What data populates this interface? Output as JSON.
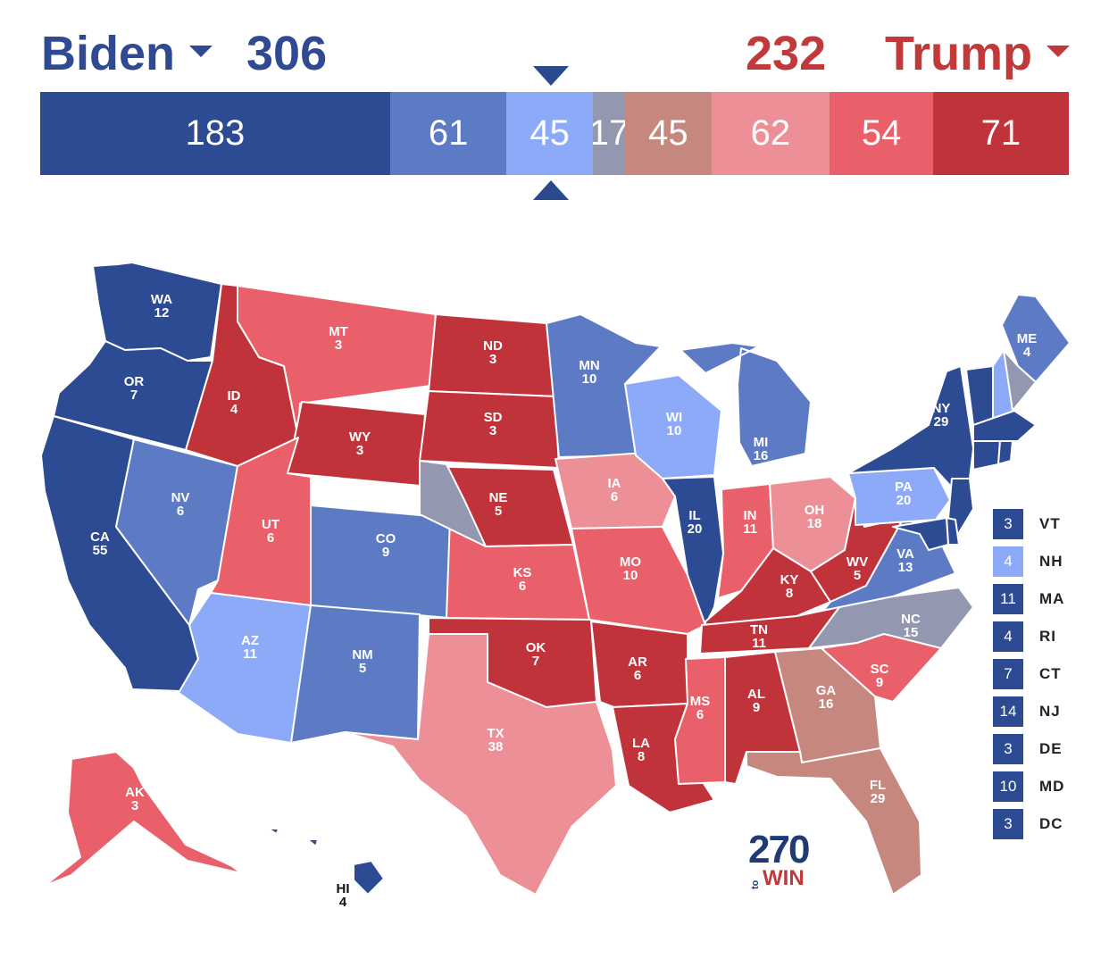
{
  "header": {
    "biden": {
      "name": "Biden",
      "ev": "306",
      "color": "#2f4a92"
    },
    "trump": {
      "name": "Trump",
      "ev": "232",
      "color": "#c1393b"
    }
  },
  "bar": {
    "segments": [
      {
        "label": "183",
        "value": 183,
        "color": "#2c4b93"
      },
      {
        "label": "61",
        "value": 61,
        "color": "#5d7bc5"
      },
      {
        "label": "45",
        "value": 45,
        "color": "#8daaf8"
      },
      {
        "label": "17",
        "value": 17,
        "color": "#9497b0"
      },
      {
        "label": "45",
        "value": 45,
        "color": "#c5877e"
      },
      {
        "label": "62",
        "value": 62,
        "color": "#ed8f96"
      },
      {
        "label": "54",
        "value": 54,
        "color": "#e9606a"
      },
      {
        "label": "71",
        "value": 71,
        "color": "#c1333b"
      }
    ]
  },
  "colors": {
    "safe_d": "#2c4b93",
    "likely_d": "#5d7bc5",
    "lean_d": "#8daaf8",
    "tossup": "#9497b0",
    "tilt_r": "#c5877e",
    "lean_r": "#ed8f96",
    "likely_r": "#e9606a",
    "safe_r": "#c1333b"
  },
  "states": [
    {
      "abbr": "WA",
      "ev": "12",
      "rating": "safe_d"
    },
    {
      "abbr": "OR",
      "ev": "7",
      "rating": "safe_d"
    },
    {
      "abbr": "CA",
      "ev": "55",
      "rating": "safe_d"
    },
    {
      "abbr": "NV",
      "ev": "6",
      "rating": "likely_d"
    },
    {
      "abbr": "ID",
      "ev": "4",
      "rating": "safe_r"
    },
    {
      "abbr": "MT",
      "ev": "3",
      "rating": "likely_r"
    },
    {
      "abbr": "WY",
      "ev": "3",
      "rating": "safe_r"
    },
    {
      "abbr": "UT",
      "ev": "6",
      "rating": "likely_r"
    },
    {
      "abbr": "AZ",
      "ev": "11",
      "rating": "lean_d"
    },
    {
      "abbr": "CO",
      "ev": "9",
      "rating": "likely_d"
    },
    {
      "abbr": "NM",
      "ev": "5",
      "rating": "likely_d"
    },
    {
      "abbr": "ND",
      "ev": "3",
      "rating": "safe_r"
    },
    {
      "abbr": "SD",
      "ev": "3",
      "rating": "safe_r"
    },
    {
      "abbr": "NE",
      "ev": "5",
      "rating": "safe_r"
    },
    {
      "abbr": "KS",
      "ev": "6",
      "rating": "likely_r"
    },
    {
      "abbr": "OK",
      "ev": "7",
      "rating": "safe_r"
    },
    {
      "abbr": "TX",
      "ev": "38",
      "rating": "lean_r"
    },
    {
      "abbr": "MN",
      "ev": "10",
      "rating": "likely_d"
    },
    {
      "abbr": "IA",
      "ev": "6",
      "rating": "lean_r"
    },
    {
      "abbr": "MO",
      "ev": "10",
      "rating": "likely_r"
    },
    {
      "abbr": "AR",
      "ev": "6",
      "rating": "safe_r"
    },
    {
      "abbr": "LA",
      "ev": "8",
      "rating": "safe_r"
    },
    {
      "abbr": "WI",
      "ev": "10",
      "rating": "lean_d"
    },
    {
      "abbr": "IL",
      "ev": "20",
      "rating": "safe_d"
    },
    {
      "abbr": "MI",
      "ev": "16",
      "rating": "likely_d"
    },
    {
      "abbr": "IN",
      "ev": "11",
      "rating": "likely_r"
    },
    {
      "abbr": "OH",
      "ev": "18",
      "rating": "lean_r"
    },
    {
      "abbr": "KY",
      "ev": "8",
      "rating": "safe_r"
    },
    {
      "abbr": "TN",
      "ev": "11",
      "rating": "safe_r"
    },
    {
      "abbr": "MS",
      "ev": "6",
      "rating": "likely_r"
    },
    {
      "abbr": "AL",
      "ev": "9",
      "rating": "safe_r"
    },
    {
      "abbr": "GA",
      "ev": "16",
      "rating": "tilt_r"
    },
    {
      "abbr": "FL",
      "ev": "29",
      "rating": "tilt_r"
    },
    {
      "abbr": "SC",
      "ev": "9",
      "rating": "likely_r"
    },
    {
      "abbr": "NC",
      "ev": "15",
      "rating": "tossup"
    },
    {
      "abbr": "VA",
      "ev": "13",
      "rating": "likely_d"
    },
    {
      "abbr": "WV",
      "ev": "5",
      "rating": "safe_r"
    },
    {
      "abbr": "PA",
      "ev": "20",
      "rating": "lean_d"
    },
    {
      "abbr": "NY",
      "ev": "29",
      "rating": "safe_d"
    },
    {
      "abbr": "ME",
      "ev": "4",
      "rating": "likely_d"
    },
    {
      "abbr": "AK",
      "ev": "3",
      "rating": "likely_r"
    },
    {
      "abbr": "HI",
      "ev": "4",
      "rating": "safe_d"
    }
  ],
  "legend": [
    {
      "abbr": "VT",
      "ev": "3",
      "color": "#2c4b93"
    },
    {
      "abbr": "NH",
      "ev": "4",
      "color": "#8daaf8"
    },
    {
      "abbr": "MA",
      "ev": "11",
      "color": "#2c4b93"
    },
    {
      "abbr": "RI",
      "ev": "4",
      "color": "#2c4b93"
    },
    {
      "abbr": "CT",
      "ev": "7",
      "color": "#2c4b93"
    },
    {
      "abbr": "NJ",
      "ev": "14",
      "color": "#2c4b93"
    },
    {
      "abbr": "DE",
      "ev": "3",
      "color": "#2c4b93"
    },
    {
      "abbr": "MD",
      "ev": "10",
      "color": "#2c4b93"
    },
    {
      "abbr": "DC",
      "ev": "3",
      "color": "#2c4b93"
    }
  ],
  "logo": {
    "number": "270",
    "to": "to",
    "win": "WIN"
  }
}
